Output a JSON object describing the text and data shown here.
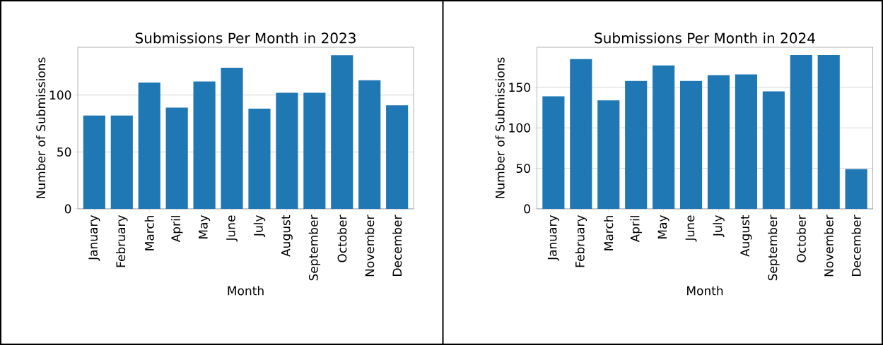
{
  "chart_data": [
    {
      "type": "bar",
      "title": "Submissions Per Month in 2023",
      "xlabel": "Month",
      "ylabel": "Number of Submissions",
      "categories": [
        "January",
        "February",
        "March",
        "April",
        "May",
        "June",
        "July",
        "August",
        "September",
        "October",
        "November",
        "December"
      ],
      "values": [
        82,
        82,
        111,
        89,
        112,
        124,
        88,
        102,
        102,
        135,
        113,
        91
      ],
      "color": "#1f77b4",
      "ylim": [
        0,
        142
      ],
      "yticks": [
        0,
        50,
        100
      ],
      "grid": "y"
    },
    {
      "type": "bar",
      "title": "Submissions Per Month in 2024",
      "xlabel": "Month",
      "ylabel": "Number of Submissions",
      "categories": [
        "January",
        "February",
        "March",
        "April",
        "May",
        "June",
        "July",
        "August",
        "September",
        "October",
        "November",
        "December"
      ],
      "values": [
        139,
        185,
        134,
        158,
        177,
        158,
        165,
        166,
        145,
        190,
        190,
        49
      ],
      "color": "#1f77b4",
      "ylim": [
        0,
        199.5
      ],
      "yticks": [
        0,
        50,
        100,
        150
      ],
      "grid": "y"
    }
  ]
}
